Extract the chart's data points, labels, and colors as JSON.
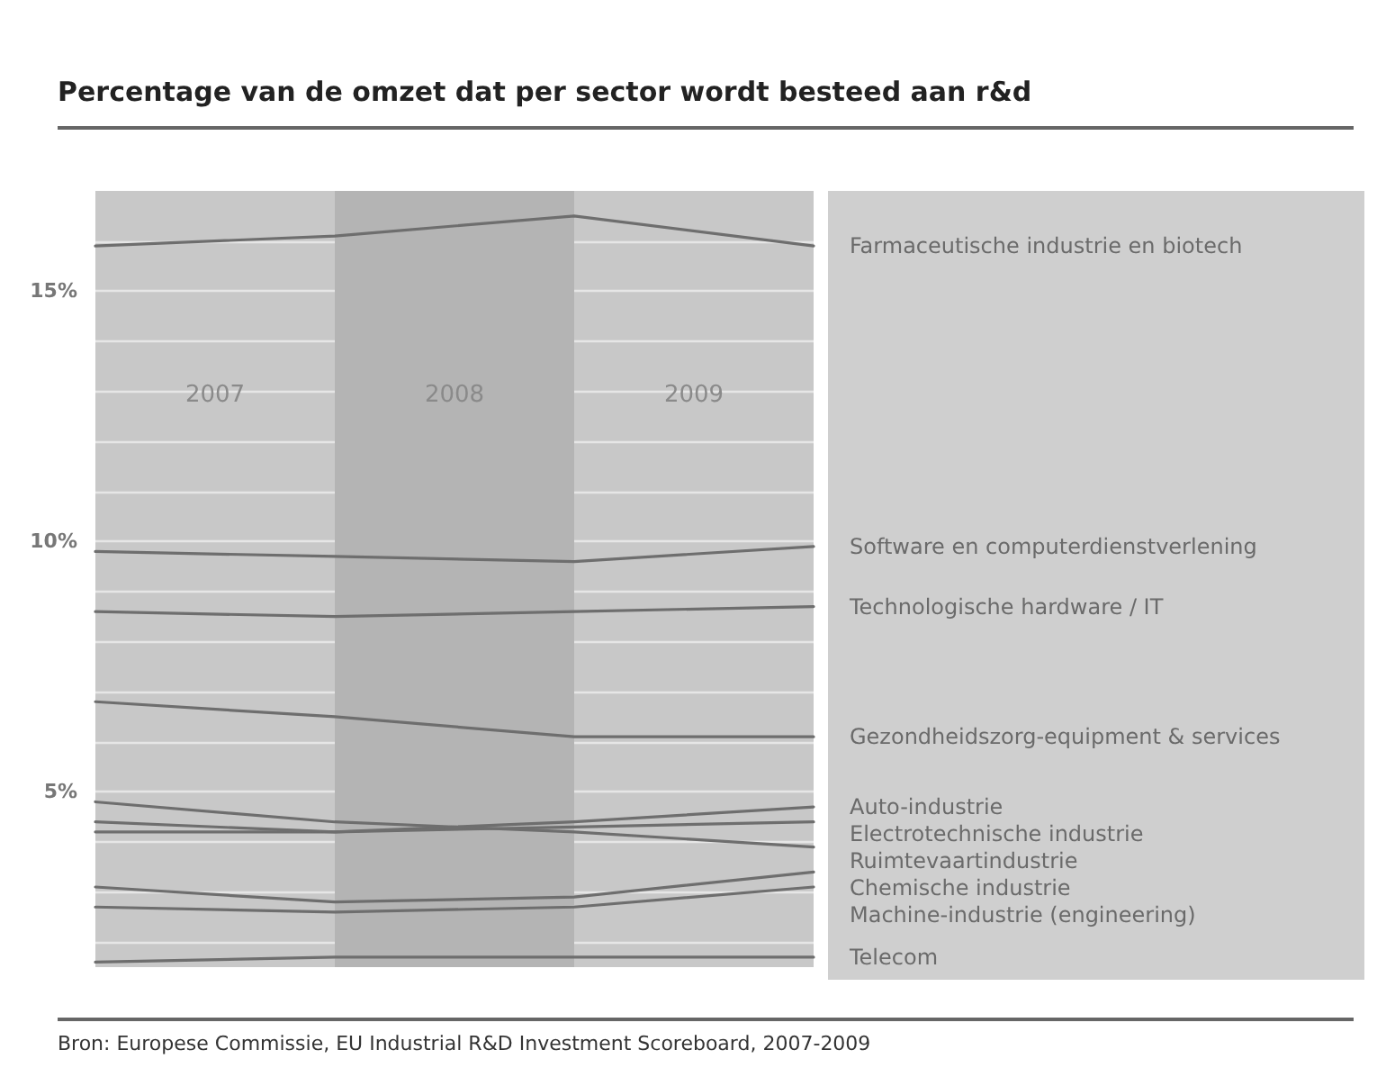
{
  "chart_data": {
    "type": "line",
    "title": "Percentage van de omzet dat per sector wordt besteed aan r&d",
    "annotations": [
      "Bron: Europese Commissie, EU Industrial R&D Investment Scoreboard, 2007-2009"
    ],
    "x": [
      2006.5,
      2007.5,
      2008.5,
      2009.5
    ],
    "xlim": [
      2006.5,
      2009.5
    ],
    "xticks": [
      2007,
      2008,
      2009
    ],
    "ylim": [
      1.5,
      17
    ],
    "yticks": [
      {
        "value": 2,
        "label": null
      },
      {
        "value": 3,
        "label": null
      },
      {
        "value": 4,
        "label": null
      },
      {
        "value": 5,
        "label": "5%"
      },
      {
        "value": 6,
        "label": null
      },
      {
        "value": 7,
        "label": null
      },
      {
        "value": 8,
        "label": null
      },
      {
        "value": 9,
        "label": null
      },
      {
        "value": 10,
        "label": "10%"
      },
      {
        "value": 11,
        "label": null
      },
      {
        "value": 12,
        "label": null
      },
      {
        "value": 13,
        "label": null
      },
      {
        "value": 14,
        "label": null
      },
      {
        "value": 15,
        "label": "15%"
      },
      {
        "value": 16,
        "label": null
      }
    ],
    "grid": "y",
    "legend": false,
    "marker": "none",
    "bands": [
      {
        "axis": "x",
        "from": 2007.5,
        "to": 2008.5,
        "color": "#b4b4b4"
      }
    ],
    "series": [
      {
        "name": "Farmaceutische industrie en biotech",
        "color": "#6e6e6e",
        "values": [
          15.9,
          16.1,
          16.5,
          15.9
        ]
      },
      {
        "name": "Software en computerdienstverlening",
        "color": "#6e6e6e",
        "values": [
          9.8,
          9.7,
          9.6,
          9.9
        ]
      },
      {
        "name": "Technologische hardware / IT",
        "color": "#6e6e6e",
        "values": [
          8.6,
          8.5,
          8.6,
          8.7
        ]
      },
      {
        "name": "Gezondheidszorg-equipment & services",
        "color": "#6e6e6e",
        "values": [
          6.8,
          6.5,
          6.1,
          6.1
        ]
      },
      {
        "name": "Auto-industrie",
        "color": "#6e6e6e",
        "values": [
          4.2,
          4.2,
          4.4,
          4.7
        ]
      },
      {
        "name": "Electrotechnische industrie",
        "color": "#6e6e6e",
        "values": [
          4.4,
          4.2,
          4.3,
          4.4
        ]
      },
      {
        "name": "Ruimtevaartindustrie",
        "color": "#6e6e6e",
        "values": [
          4.8,
          4.4,
          4.2,
          3.9
        ]
      },
      {
        "name": "Chemische industrie",
        "color": "#6e6e6e",
        "values": [
          3.1,
          2.8,
          2.9,
          3.4
        ]
      },
      {
        "name": "Machine-industrie (engineering)",
        "color": "#6e6e6e",
        "values": [
          2.7,
          2.6,
          2.7,
          3.1
        ]
      },
      {
        "name": "Telecom",
        "color": "#6e6e6e",
        "values": [
          1.6,
          1.7,
          1.7,
          1.7
        ]
      }
    ]
  }
}
